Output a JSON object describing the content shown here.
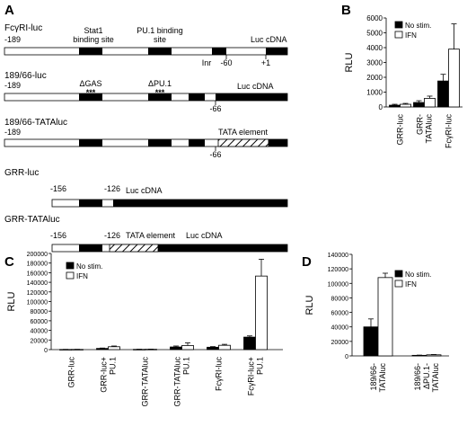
{
  "panels": {
    "a": "A",
    "b": "B",
    "c": "C",
    "d": "D"
  },
  "constructs": {
    "c1": {
      "name": "FcγRI-luc",
      "start": "-189",
      "stat1_label_1": "Stat1",
      "stat1_label_2": "binding site",
      "pu1_label_1": "PU.1 binding",
      "pu1_label_2": "site",
      "inr": "Inr",
      "m60": "-60",
      "p1": "+1",
      "luc": "Luc cDNA"
    },
    "c2": {
      "name": "189/66-luc",
      "start": "-189",
      "dgas": "ΔGAS",
      "dpu1": "ΔPU.1",
      "stars1": "***",
      "stars2": "***",
      "luc": "Luc cDNA",
      "m66": "-66"
    },
    "c3": {
      "name": "189/66-TATAluc",
      "start": "-189",
      "tata": "TATA element",
      "m66": "-66"
    },
    "c4": {
      "name": "GRR-luc",
      "start": "-156",
      "end": "-126",
      "luc": "Luc cDNA"
    },
    "c5": {
      "name": "GRR-TATAluc",
      "start": "-156",
      "end": "-126",
      "tata": "TATA element",
      "luc": "Luc cDNA"
    }
  },
  "colors": {
    "filled": "#000000",
    "open": "#ffffff"
  },
  "chart_data": [
    {
      "panel": "B",
      "type": "bar",
      "ylabel": "RLU",
      "ylim": [
        0,
        6000
      ],
      "yticks": [
        "0",
        "1000",
        "2000",
        "3000",
        "4000",
        "5000",
        "6000"
      ],
      "legend": "top-left",
      "categories": [
        "GRR-luc",
        "GRR-TATAluc",
        "FcγRI-luc"
      ],
      "category_lines": [
        [
          "GRR-luc"
        ],
        [
          "GRR-",
          "TATAluc"
        ],
        [
          "FcγRI-luc"
        ]
      ],
      "series": [
        {
          "name": "No stim.",
          "values": [
            120,
            300,
            1750
          ],
          "errors": [
            60,
            120,
            450
          ]
        },
        {
          "name": "IFN",
          "values": [
            180,
            580,
            3900
          ],
          "errors": [
            60,
            150,
            1700
          ]
        }
      ]
    },
    {
      "panel": "C",
      "type": "bar",
      "ylabel": "RLU",
      "ylim": [
        0,
        200000
      ],
      "yticks": [
        "0",
        "20000",
        "40000",
        "60000",
        "80000",
        "100000",
        "120000",
        "140000",
        "160000",
        "180000",
        "200000"
      ],
      "legend": "top-left",
      "categories": [
        "GRR-luc",
        "GRR-luc+ PU.1",
        "GRR-TATAluc",
        "GRR-TATAluc PU.1",
        "FcγRI-luc",
        "FcγRI-luc+ PU.1"
      ],
      "category_lines": [
        [
          "GRR-luc"
        ],
        [
          "GRR-luc+",
          "PU.1"
        ],
        [
          "GRR-TATAluc"
        ],
        [
          "GRR-TATAluc",
          "PU.1"
        ],
        [
          "FcγRI-luc"
        ],
        [
          "FcγRI-luc+",
          "PU.1"
        ]
      ],
      "series": [
        {
          "name": "No stim.",
          "values": [
            300,
            2500,
            500,
            5500,
            5000,
            26000
          ],
          "errors": [
            200,
            800,
            300,
            2000,
            1200,
            2500
          ]
        },
        {
          "name": "IFN",
          "values": [
            400,
            6000,
            700,
            8500,
            9000,
            153000
          ],
          "errors": [
            200,
            1500,
            300,
            5500,
            2000,
            35000
          ]
        }
      ]
    },
    {
      "panel": "D",
      "type": "bar",
      "ylabel": "RLU",
      "ylim": [
        0,
        140000
      ],
      "yticks": [
        "0",
        "20000",
        "40000",
        "60000",
        "80000",
        "100000",
        "120000",
        "140000"
      ],
      "legend": "top-right",
      "categories": [
        "189/66-TATAluc",
        "189/66-ΔPU.1-TATAluc"
      ],
      "category_lines": [
        [
          "189/66-",
          "TATAluc"
        ],
        [
          "189/66-",
          "ΔPU.1-",
          "TATAluc"
        ]
      ],
      "series": [
        {
          "name": "No stim.",
          "values": [
            40000,
            800
          ],
          "errors": [
            11000,
            300
          ]
        },
        {
          "name": "IFN",
          "values": [
            108000,
            1500
          ],
          "errors": [
            6000,
            400
          ]
        }
      ]
    }
  ]
}
